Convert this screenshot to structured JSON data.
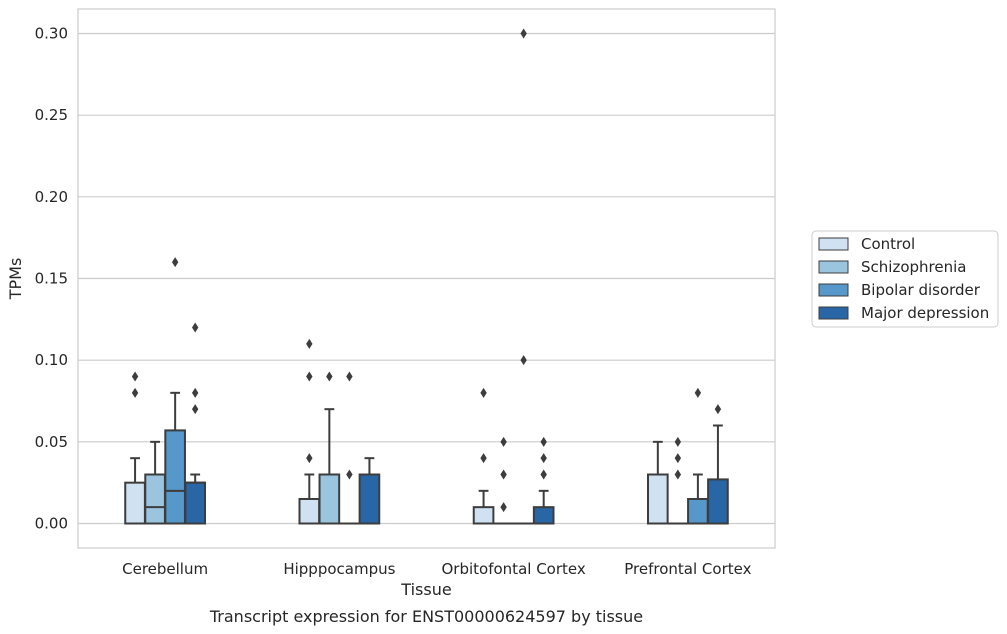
{
  "caption": "Transcript expression for ENST00000624597 by tissue",
  "chart_data": {
    "type": "boxplot",
    "xlabel": "Tissue",
    "ylabel": "TPMs",
    "ylim": [
      -0.015,
      0.315
    ],
    "yticks": [
      "0.00",
      "0.05",
      "0.10",
      "0.15",
      "0.20",
      "0.25",
      "0.30"
    ],
    "categories": [
      "Cerebellum",
      "Hipppocampus",
      "Orbitofontal Cortex",
      "Prefrontal Cortex"
    ],
    "grid": "horizontal",
    "legend_position": "right",
    "series": [
      {
        "name": "Control",
        "color": "#d0e1f1",
        "boxes": [
          {
            "q1": 0.0,
            "median": 0.0,
            "q3": 0.025,
            "whislo": 0.0,
            "whishi": 0.04,
            "fliers": [
              0.08,
              0.09
            ]
          },
          {
            "q1": 0.0,
            "median": 0.0,
            "q3": 0.015,
            "whislo": 0.0,
            "whishi": 0.03,
            "fliers": [
              0.04,
              0.09,
              0.11
            ]
          },
          {
            "q1": 0.0,
            "median": 0.0,
            "q3": 0.01,
            "whislo": 0.0,
            "whishi": 0.02,
            "fliers": [
              0.04,
              0.08
            ]
          },
          {
            "q1": 0.0,
            "median": 0.0,
            "q3": 0.03,
            "whislo": 0.0,
            "whishi": 0.05,
            "fliers": []
          }
        ]
      },
      {
        "name": "Schizophrenia",
        "color": "#9bc4de",
        "boxes": [
          {
            "q1": 0.0,
            "median": 0.01,
            "q3": 0.03,
            "whislo": 0.0,
            "whishi": 0.05,
            "fliers": []
          },
          {
            "q1": 0.0,
            "median": 0.0,
            "q3": 0.03,
            "whislo": 0.0,
            "whishi": 0.07,
            "fliers": [
              0.09
            ]
          },
          {
            "q1": 0.0,
            "median": 0.0,
            "q3": 0.0,
            "whislo": 0.0,
            "whishi": 0.0,
            "fliers": [
              0.01,
              0.03,
              0.05
            ]
          },
          {
            "q1": 0.0,
            "median": 0.0,
            "q3": 0.0,
            "whislo": 0.0,
            "whishi": 0.0,
            "fliers": [
              0.03,
              0.04,
              0.05
            ]
          }
        ]
      },
      {
        "name": "Bipolar disorder",
        "color": "#5598c9",
        "boxes": [
          {
            "q1": 0.0,
            "median": 0.02,
            "q3": 0.057,
            "whislo": 0.0,
            "whishi": 0.08,
            "fliers": [
              0.16
            ]
          },
          {
            "q1": 0.0,
            "median": 0.0,
            "q3": 0.0,
            "whislo": 0.0,
            "whishi": 0.0,
            "fliers": [
              0.03,
              0.09
            ]
          },
          {
            "q1": 0.0,
            "median": 0.0,
            "q3": 0.0,
            "whislo": 0.0,
            "whishi": 0.0,
            "fliers": [
              0.1,
              0.3
            ]
          },
          {
            "q1": 0.0,
            "median": 0.0,
            "q3": 0.015,
            "whislo": 0.0,
            "whishi": 0.03,
            "fliers": [
              0.08
            ]
          }
        ]
      },
      {
        "name": "Major depression",
        "color": "#2866a6",
        "boxes": [
          {
            "q1": 0.0,
            "median": 0.025,
            "q3": 0.025,
            "whislo": 0.0,
            "whishi": 0.03,
            "fliers": [
              0.07,
              0.08,
              0.12
            ]
          },
          {
            "q1": 0.0,
            "median": 0.03,
            "q3": 0.03,
            "whislo": 0.0,
            "whishi": 0.04,
            "fliers": []
          },
          {
            "q1": 0.0,
            "median": 0.0,
            "q3": 0.01,
            "whislo": 0.0,
            "whishi": 0.02,
            "fliers": [
              0.03,
              0.04,
              0.05
            ]
          },
          {
            "q1": 0.0,
            "median": 0.0,
            "q3": 0.027,
            "whislo": 0.0,
            "whishi": 0.06,
            "fliers": [
              0.07
            ]
          }
        ]
      }
    ]
  }
}
